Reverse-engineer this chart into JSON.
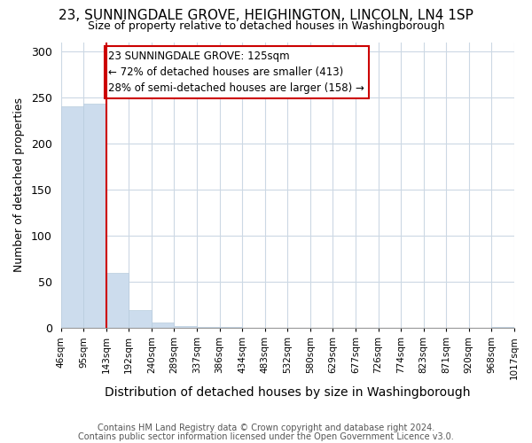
{
  "title": "23, SUNNINGDALE GROVE, HEIGHINGTON, LINCOLN, LN4 1SP",
  "subtitle": "Size of property relative to detached houses in Washingborough",
  "xlabel": "Distribution of detached houses by size in Washingborough",
  "ylabel": "Number of detached properties",
  "bar_values": [
    240,
    243,
    60,
    19,
    6,
    2,
    1,
    1,
    0,
    0,
    0,
    0,
    0,
    0,
    0,
    0,
    0,
    0,
    0,
    1
  ],
  "bar_labels": [
    "46sqm",
    "95sqm",
    "143sqm",
    "192sqm",
    "240sqm",
    "289sqm",
    "337sqm",
    "386sqm",
    "434sqm",
    "483sqm",
    "532sqm",
    "580sqm",
    "629sqm",
    "677sqm",
    "726sqm",
    "774sqm",
    "823sqm",
    "871sqm",
    "920sqm",
    "968sqm",
    "1017sqm"
  ],
  "bar_color": "#ccdced",
  "bar_edge_color": "#b8ccde",
  "vline_color": "#cc0000",
  "ylim": [
    0,
    310
  ],
  "yticks": [
    0,
    50,
    100,
    150,
    200,
    250,
    300
  ],
  "annotation_title": "23 SUNNINGDALE GROVE: 125sqm",
  "annotation_line1": "← 72% of detached houses are smaller (413)",
  "annotation_line2": "28% of semi-detached houses are larger (158) →",
  "annotation_box_color": "#ffffff",
  "annotation_box_edge": "#cc0000",
  "footer_line1": "Contains HM Land Registry data © Crown copyright and database right 2024.",
  "footer_line2": "Contains public sector information licensed under the Open Government Licence v3.0.",
  "figsize": [
    6.0,
    5.0
  ],
  "dpi": 100
}
